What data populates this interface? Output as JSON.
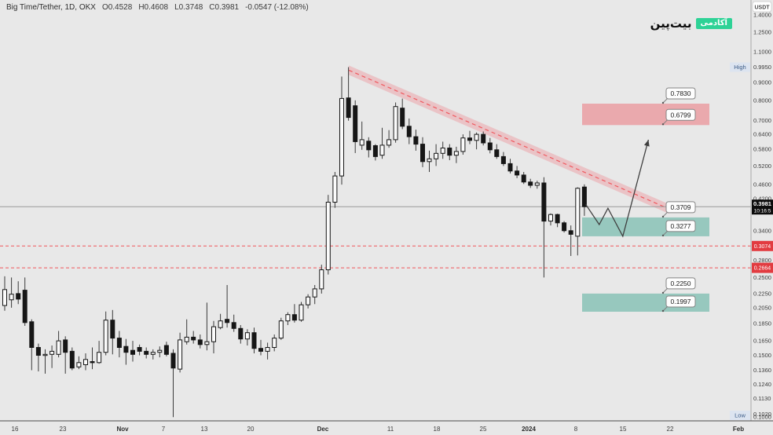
{
  "header": {
    "symbol": "Big Time/Tether, 1D, OKX",
    "open": "O0.4528",
    "high": "H0.4608",
    "low": "L0.3748",
    "close": "C0.3981",
    "change": "-0.0547 (-12.08%)"
  },
  "watermark": {
    "brand": "بیت‌پین",
    "badge": "آکادمی",
    "badge_color": "#2ed296"
  },
  "price_axis": {
    "currency": "USDT",
    "ticks": [
      "1.4000",
      "1.2500",
      "1.1000",
      "0.9950",
      "0.9000",
      "0.8000",
      "0.7000",
      "0.6400",
      "0.5800",
      "0.5200",
      "0.4600",
      "0.4200",
      "0.3400",
      "0.2800",
      "0.2500",
      "0.2250",
      "0.2050",
      "0.1850",
      "0.1650",
      "0.1500",
      "0.1360",
      "0.1240",
      "0.1130",
      "0.1020",
      "0.1000"
    ],
    "high_label": "High",
    "low_label": "Low",
    "current_price": "0.3981",
    "countdown": "10:16:5",
    "level_badges": [
      "0.3074",
      "0.2664"
    ],
    "badge_color": "#e23b40",
    "highlow_bg": "#dce4f0",
    "highlow_text": "#3b5b86"
  },
  "time_axis": {
    "labels": [
      "16",
      "23",
      "Nov",
      "7",
      "13",
      "20",
      "Dec",
      "11",
      "18",
      "25",
      "2024",
      "8",
      "15",
      "22",
      "Feb"
    ],
    "bold": [
      false,
      false,
      true,
      false,
      false,
      false,
      true,
      false,
      false,
      false,
      true,
      false,
      false,
      false,
      true
    ]
  },
  "chart_data": {
    "type": "candlestick",
    "title": "Big Time/Tether",
    "interval": "1D",
    "exchange": "OKX",
    "quote": "USDT",
    "scale": "log",
    "visible_price_range": [
      0.0975,
      1.45
    ],
    "high_marker": 0.995,
    "low_marker": 0.1,
    "current": {
      "price": 0.3981
    },
    "candles": [
      [
        0.208,
        0.252,
        0.201,
        0.231
      ],
      [
        0.216,
        0.25,
        0.205,
        0.224
      ],
      [
        0.225,
        0.244,
        0.21,
        0.217
      ],
      [
        0.23,
        0.25,
        0.182,
        0.186
      ],
      [
        0.187,
        0.19,
        0.136,
        0.158
      ],
      [
        0.158,
        0.162,
        0.135,
        0.15
      ],
      [
        0.15,
        0.156,
        0.133,
        0.151
      ],
      [
        0.151,
        0.16,
        0.138,
        0.154
      ],
      [
        0.151,
        0.176,
        0.148,
        0.165
      ],
      [
        0.166,
        0.17,
        0.133,
        0.153
      ],
      [
        0.154,
        0.158,
        0.136,
        0.138
      ],
      [
        0.139,
        0.149,
        0.137,
        0.143
      ],
      [
        0.141,
        0.152,
        0.136,
        0.146
      ],
      [
        0.144,
        0.158,
        0.137,
        0.143
      ],
      [
        0.143,
        0.165,
        0.142,
        0.153
      ],
      [
        0.153,
        0.2,
        0.15,
        0.189
      ],
      [
        0.189,
        0.202,
        0.151,
        0.168
      ],
      [
        0.168,
        0.176,
        0.148,
        0.158
      ],
      [
        0.159,
        0.167,
        0.141,
        0.153
      ],
      [
        0.155,
        0.165,
        0.144,
        0.151
      ],
      [
        0.158,
        0.161,
        0.15,
        0.154
      ],
      [
        0.154,
        0.158,
        0.147,
        0.151
      ],
      [
        0.151,
        0.156,
        0.146,
        0.153
      ],
      [
        0.153,
        0.159,
        0.148,
        0.155
      ],
      [
        0.16,
        0.164,
        0.149,
        0.151
      ],
      [
        0.152,
        0.156,
        0.1,
        0.138
      ],
      [
        0.137,
        0.174,
        0.134,
        0.166
      ],
      [
        0.164,
        0.19,
        0.161,
        0.169
      ],
      [
        0.169,
        0.176,
        0.162,
        0.166
      ],
      [
        0.166,
        0.172,
        0.157,
        0.161
      ],
      [
        0.161,
        0.212,
        0.155,
        0.164
      ],
      [
        0.164,
        0.188,
        0.152,
        0.181
      ],
      [
        0.18,
        0.197,
        0.178,
        0.188
      ],
      [
        0.19,
        0.238,
        0.18,
        0.186
      ],
      [
        0.186,
        0.196,
        0.175,
        0.179
      ],
      [
        0.179,
        0.183,
        0.162,
        0.167
      ],
      [
        0.167,
        0.178,
        0.16,
        0.174
      ],
      [
        0.174,
        0.18,
        0.152,
        0.157
      ],
      [
        0.157,
        0.166,
        0.15,
        0.154
      ],
      [
        0.154,
        0.163,
        0.146,
        0.158
      ],
      [
        0.158,
        0.172,
        0.154,
        0.168
      ],
      [
        0.168,
        0.192,
        0.166,
        0.188
      ],
      [
        0.188,
        0.199,
        0.183,
        0.196
      ],
      [
        0.196,
        0.21,
        0.186,
        0.189
      ],
      [
        0.189,
        0.213,
        0.187,
        0.209
      ],
      [
        0.209,
        0.224,
        0.204,
        0.22
      ],
      [
        0.22,
        0.238,
        0.21,
        0.232
      ],
      [
        0.232,
        0.272,
        0.225,
        0.263
      ],
      [
        0.263,
        0.43,
        0.255,
        0.41
      ],
      [
        0.41,
        0.5,
        0.395,
        0.487
      ],
      [
        0.487,
        0.935,
        0.46,
        0.81
      ],
      [
        0.813,
        0.995,
        0.7,
        0.715
      ],
      [
        0.772,
        0.8,
        0.566,
        0.61
      ],
      [
        0.596,
        0.696,
        0.578,
        0.618
      ],
      [
        0.612,
        0.628,
        0.55,
        0.578
      ],
      [
        0.594,
        0.6,
        0.539,
        0.553
      ],
      [
        0.558,
        0.668,
        0.545,
        0.596
      ],
      [
        0.596,
        0.658,
        0.586,
        0.618
      ],
      [
        0.618,
        0.789,
        0.606,
        0.768
      ],
      [
        0.76,
        0.809,
        0.662,
        0.675
      ],
      [
        0.675,
        0.71,
        0.6,
        0.63
      ],
      [
        0.63,
        0.66,
        0.575,
        0.6
      ],
      [
        0.6,
        0.628,
        0.516,
        0.535
      ],
      [
        0.535,
        0.575,
        0.5,
        0.545
      ],
      [
        0.545,
        0.6,
        0.52,
        0.565
      ],
      [
        0.565,
        0.61,
        0.545,
        0.585
      ],
      [
        0.585,
        0.6,
        0.54,
        0.558
      ],
      [
        0.558,
        0.59,
        0.53,
        0.572
      ],
      [
        0.572,
        0.64,
        0.56,
        0.625
      ],
      [
        0.625,
        0.655,
        0.6,
        0.615
      ],
      [
        0.615,
        0.648,
        0.58,
        0.64
      ],
      [
        0.64,
        0.652,
        0.595,
        0.605
      ],
      [
        0.605,
        0.625,
        0.565,
        0.578
      ],
      [
        0.578,
        0.6,
        0.545,
        0.553
      ],
      [
        0.553,
        0.57,
        0.52,
        0.528
      ],
      [
        0.528,
        0.545,
        0.495,
        0.503
      ],
      [
        0.503,
        0.52,
        0.48,
        0.49
      ],
      [
        0.49,
        0.5,
        0.462,
        0.468
      ],
      [
        0.468,
        0.478,
        0.45,
        0.458
      ],
      [
        0.458,
        0.472,
        0.448,
        0.465
      ],
      [
        0.465,
        0.483,
        0.25,
        0.362
      ],
      [
        0.362,
        0.381,
        0.352,
        0.378
      ],
      [
        0.378,
        0.38,
        0.348,
        0.358
      ],
      [
        0.358,
        0.362,
        0.336,
        0.34
      ],
      [
        0.34,
        0.352,
        0.288,
        0.332
      ],
      [
        0.328,
        0.452,
        0.289,
        0.449
      ],
      [
        0.4528,
        0.4608,
        0.3748,
        0.3981
      ]
    ],
    "levels": [
      {
        "price": 0.3074,
        "color": "#f0555a",
        "style": "dashed"
      },
      {
        "price": 0.2664,
        "color": "#f0555a",
        "style": "dashed"
      }
    ],
    "zones": [
      {
        "role": "supply",
        "top": 0.783,
        "bottom": 0.6799,
        "color": "rgba(237,75,85,0.40)"
      },
      {
        "role": "demand",
        "top": 0.3709,
        "bottom": 0.3277,
        "color": "rgba(38,154,132,0.42)"
      },
      {
        "role": "demand",
        "top": 0.225,
        "bottom": 0.1997,
        "color": "rgba(38,154,132,0.42)"
      }
    ],
    "trend_channel": {
      "start_price": 0.975,
      "end_price": 0.392,
      "line_color": "#f0585e",
      "band_color": "rgba(240,110,120,0.30)",
      "style": "dashed"
    },
    "projection": {
      "color": "#3f3f3f",
      "arrow": true,
      "points": [
        [
          86.2,
          0.404
        ],
        [
          88.2,
          0.354
        ],
        [
          89.5,
          0.394
        ],
        [
          91.7,
          0.3277
        ],
        [
          95.5,
          0.6175
        ]
      ]
    },
    "callouts": [
      {
        "text": "0.7830",
        "price": 0.783
      },
      {
        "text": "0.6799",
        "price": 0.6799
      },
      {
        "text": "0.3709",
        "price": 0.3709
      },
      {
        "text": "0.3277",
        "price": 0.3277
      },
      {
        "text": "0.2250",
        "price": 0.225
      },
      {
        "text": "0.1997",
        "price": 0.1997
      }
    ]
  }
}
